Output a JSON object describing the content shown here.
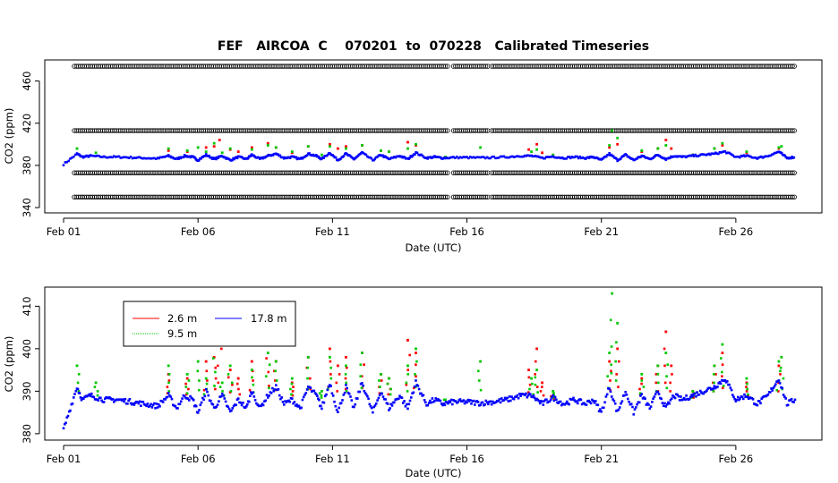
{
  "chart_data": [
    {
      "type": "scatter",
      "title": "FEF   AIRCOA  C    070201  to  070228   Calibrated Timeseries",
      "xlabel": "Date (UTC)",
      "ylabel": "CO2 (ppm)",
      "x_ticks": [
        "Feb 01",
        "Feb 06",
        "Feb 11",
        "Feb 16",
        "Feb 21",
        "Feb 26"
      ],
      "x_tick_days": [
        1,
        6,
        11,
        16,
        21,
        26
      ],
      "xlim": [
        0.3,
        29.2
      ],
      "y_ticks": [
        340,
        380,
        420,
        460
      ],
      "ylim": [
        335,
        480
      ],
      "calibration_levels": [
        350,
        373,
        413,
        474
      ],
      "calibration_range_days": [
        1.4,
        28.2
      ],
      "series_colors": [
        "#ff0000",
        "#00c800",
        "#0000ff"
      ],
      "calibration_color": "#000000"
    },
    {
      "type": "line",
      "title": "",
      "xlabel": "Date (UTC)",
      "ylabel": "CO2 (ppm)",
      "x_ticks": [
        "Feb 01",
        "Feb 06",
        "Feb 11",
        "Feb 16",
        "Feb 21",
        "Feb 26"
      ],
      "x_tick_days": [
        1,
        6,
        11,
        16,
        21,
        26
      ],
      "xlim": [
        0.3,
        29.2
      ],
      "y_ticks": [
        380,
        390,
        400,
        410
      ],
      "ylim": [
        378.5,
        414.5
      ],
      "legend": {
        "position": "top-left",
        "entries": [
          {
            "label": "2.6 m",
            "color": "#ff0000"
          },
          {
            "label": "9.5 m",
            "color": "#00c800"
          },
          {
            "label": "17.8 m",
            "color": "#0000ff"
          }
        ]
      },
      "series": [
        {
          "name": "17.8 m",
          "color": "#0000ff",
          "x": [
            1.0,
            1.5,
            1.7,
            2.0,
            2.5,
            3.0,
            3.5,
            4.0,
            4.5,
            4.9,
            5.2,
            5.5,
            5.8,
            6.0,
            6.3,
            6.6,
            6.9,
            7.2,
            7.5,
            7.8,
            8.0,
            8.3,
            8.6,
            8.9,
            9.2,
            9.5,
            9.8,
            10.1,
            10.4,
            10.6,
            10.9,
            11.2,
            11.5,
            11.8,
            12.1,
            12.5,
            12.8,
            13.1,
            13.5,
            13.8,
            14.1,
            14.5,
            14.8,
            15.1,
            15.5,
            16.0,
            16.5,
            17.0,
            17.5,
            18.0,
            18.4,
            18.8,
            19.2,
            19.6,
            20.0,
            20.4,
            20.7,
            21.0,
            21.3,
            21.6,
            21.9,
            22.2,
            22.5,
            22.8,
            23.1,
            23.4,
            23.7,
            24.0,
            24.4,
            24.8,
            25.2,
            25.6,
            26.0,
            26.4,
            26.8,
            27.2,
            27.6,
            27.9,
            28.2
          ],
          "values": [
            381,
            391,
            388,
            389,
            388,
            388,
            387.5,
            387,
            386.5,
            389,
            386,
            389,
            388,
            385,
            390,
            386,
            389,
            385,
            388,
            386,
            390,
            386,
            389,
            391,
            387,
            388,
            386,
            391,
            389,
            386,
            392,
            385,
            391,
            386,
            392,
            385,
            390,
            386,
            389,
            386,
            392,
            387,
            388,
            387,
            387.5,
            387.5,
            387.2,
            387.5,
            388,
            389,
            389,
            387,
            388.5,
            387,
            388,
            387,
            388,
            385,
            391,
            385,
            390,
            385,
            389,
            386,
            390,
            386,
            389,
            388,
            389,
            390,
            391,
            393,
            388,
            389,
            387,
            389,
            393,
            387,
            388
          ]
        },
        {
          "name": "9.5 m",
          "color": "#00c800",
          "x": [
            1.5,
            2.2,
            4.9,
            5.6,
            6.0,
            6.3,
            6.6,
            6.9,
            7.2,
            8.0,
            8.6,
            8.9,
            9.5,
            10.1,
            10.6,
            10.9,
            11.5,
            12.1,
            12.8,
            13.1,
            13.8,
            14.1,
            15.2,
            16.5,
            18.4,
            18.6,
            19.2,
            21.3,
            21.4,
            21.6,
            22.5,
            23.1,
            23.4,
            24.4,
            25.2,
            25.5,
            26.4,
            27.6,
            27.7
          ],
          "values": [
            396,
            392,
            396,
            394,
            397,
            393,
            401,
            392,
            396,
            395,
            399,
            397,
            393,
            398,
            390,
            398,
            396,
            399,
            394,
            393,
            396,
            400,
            388,
            397,
            393,
            395,
            390,
            399,
            413,
            406,
            394,
            396,
            399,
            390,
            396,
            401,
            393,
            397,
            398
          ]
        },
        {
          "name": "2.6 m",
          "color": "#ff0000",
          "x": [
            4.9,
            5.6,
            6.3,
            6.6,
            6.8,
            7.2,
            7.5,
            8.0,
            8.6,
            8.9,
            9.5,
            10.1,
            10.9,
            11.2,
            11.5,
            12.1,
            12.8,
            13.1,
            13.8,
            14.1,
            18.3,
            18.6,
            18.8,
            19.2,
            21.3,
            21.6,
            22.5,
            23.1,
            23.4,
            23.6,
            24.4,
            25.2,
            25.5,
            26.4,
            27.6
          ],
          "values": [
            394,
            393,
            397,
            398,
            404,
            395,
            393,
            397,
            401,
            397,
            392,
            398,
            400,
            396,
            398,
            399,
            394,
            393,
            402,
            399,
            395,
            400,
            392,
            389,
            397,
            400,
            393,
            396,
            404,
            396,
            390,
            396,
            399,
            392,
            396
          ]
        }
      ]
    }
  ]
}
